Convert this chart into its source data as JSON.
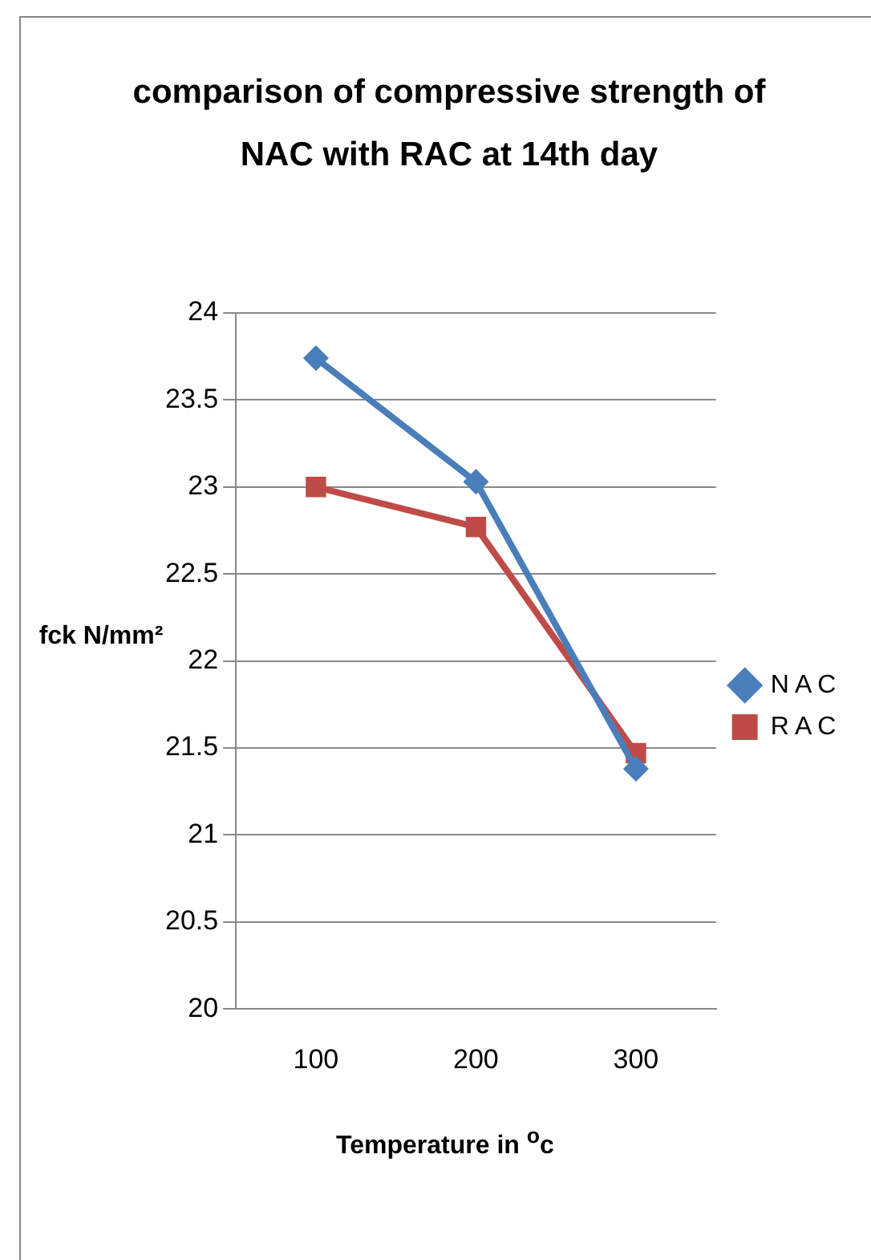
{
  "chart_data": {
    "type": "line",
    "title": "comparison of compressive strength of NAC with RAC at 14th day",
    "xlabel": "Temperature in $^{o}$c",
    "ylabel": "fck N/mm²",
    "categories": [
      "100",
      "200",
      "300"
    ],
    "series": [
      {
        "name": "N A C",
        "color": "#4a7ebb",
        "values": [
          23.74,
          23.03,
          21.38
        ],
        "marker": "diamond"
      },
      {
        "name": "R A C",
        "color": "#be4b48",
        "values": [
          23.0,
          22.77,
          21.47
        ],
        "marker": "square"
      }
    ],
    "ylim": [
      20,
      24
    ],
    "yticks": [
      20,
      20.5,
      21,
      21.5,
      22,
      22.5,
      23,
      23.5,
      24
    ],
    "grid": "y",
    "legend": "right",
    "line_style": "solid"
  }
}
